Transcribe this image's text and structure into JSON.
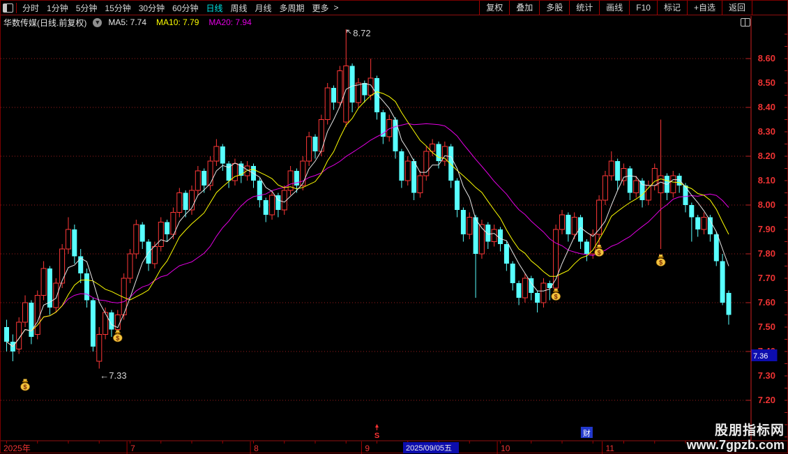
{
  "app": {
    "toolbar": {
      "left_items": [
        "分时",
        "1分钟",
        "5分钟",
        "15分钟",
        "30分钟",
        "60分钟",
        "日线",
        "周线",
        "月线",
        "多周期",
        "更多"
      ],
      "more_arrow": ">",
      "active_item": "日线",
      "right_items": [
        "复权",
        "叠加",
        "多股",
        "统计",
        "画线",
        "F10",
        "标记",
        "+自选",
        "返回"
      ]
    },
    "title_bar": {
      "symbol_title": "华数传媒(日线.前复权)",
      "ma_labels": [
        {
          "text": "MA5: 7.74",
          "color": "#e6e6e6"
        },
        {
          "text": "MA10: 7.79",
          "color": "#ffff00"
        },
        {
          "text": "MA20: 7.94",
          "color": "#e400e4"
        }
      ]
    },
    "watermark": {
      "line1": "股朋指标网",
      "line2": "www.7gpzb.com"
    }
  },
  "chart_data": {
    "type": "candlestick",
    "title": "华数传媒 日线 前复权",
    "y_axis": {
      "labels": [
        "8.60",
        "8.50",
        "8.40",
        "8.30",
        "8.20",
        "8.10",
        "8.00",
        "7.90",
        "7.80",
        "7.70",
        "7.60",
        "7.50",
        "7.40",
        "7.30",
        "7.20"
      ],
      "grid_step": 0.2
    },
    "x_axis": {
      "year_label": "2025年",
      "months": [
        {
          "label": "7",
          "index": 20
        },
        {
          "label": "8",
          "index": 40
        },
        {
          "label": "9",
          "index": 58
        },
        {
          "label": "10",
          "index": 80
        },
        {
          "label": "11",
          "index": 97
        }
      ],
      "date_tag": "2025/09/05五"
    },
    "last_price_tag": "7.36",
    "high_annotation": {
      "index": 55,
      "text": "8.72"
    },
    "low_annotation": {
      "index": 15,
      "text": "7.33"
    },
    "money_bags": [
      {
        "index": 3,
        "price": 7.26
      },
      {
        "index": 18,
        "price": 7.46
      },
      {
        "index": 89,
        "price": 7.63
      },
      {
        "index": 96,
        "price": 7.81
      },
      {
        "index": 106,
        "price": 7.77
      }
    ],
    "dividend_marker": {
      "index": 60,
      "symbol": "S"
    },
    "report_marker": {
      "index": 94,
      "text": "财"
    },
    "ma_series": [
      {
        "name": "MA5",
        "period": 5,
        "color": "#e6e6e6"
      },
      {
        "name": "MA10",
        "period": 10,
        "color": "#ffff00"
      },
      {
        "name": "MA20",
        "period": 20,
        "color": "#e400e4"
      }
    ],
    "colors": {
      "up": "#ff3737",
      "down": "#58ffff",
      "axis_text": "#ee3333",
      "grid": "#9b1e1e",
      "tag_bg": "#0d0dae",
      "separator": "#a00000"
    },
    "candles": [
      [
        7.5,
        7.53,
        7.4,
        7.44
      ],
      [
        7.44,
        7.47,
        7.36,
        7.4
      ],
      [
        7.41,
        7.54,
        7.39,
        7.52
      ],
      [
        7.52,
        7.63,
        7.5,
        7.6
      ],
      [
        7.6,
        7.61,
        7.43,
        7.46
      ],
      [
        7.47,
        7.65,
        7.45,
        7.63
      ],
      [
        7.63,
        7.77,
        7.61,
        7.74
      ],
      [
        7.74,
        7.75,
        7.55,
        7.58
      ],
      [
        7.58,
        7.7,
        7.56,
        7.68
      ],
      [
        7.68,
        7.84,
        7.66,
        7.82
      ],
      [
        7.82,
        7.95,
        7.8,
        7.9
      ],
      [
        7.9,
        7.92,
        7.76,
        7.79
      ],
      [
        7.79,
        7.82,
        7.68,
        7.72
      ],
      [
        7.72,
        7.74,
        7.58,
        7.61
      ],
      [
        7.61,
        7.62,
        7.4,
        7.42
      ],
      [
        7.36,
        7.5,
        7.33,
        7.47
      ],
      [
        7.47,
        7.58,
        7.45,
        7.56
      ],
      [
        7.56,
        7.57,
        7.46,
        7.49
      ],
      [
        7.49,
        7.57,
        7.44,
        7.55
      ],
      [
        7.55,
        7.72,
        7.53,
        7.7
      ],
      [
        7.7,
        7.82,
        7.68,
        7.8
      ],
      [
        7.8,
        7.94,
        7.78,
        7.92
      ],
      [
        7.92,
        7.93,
        7.82,
        7.85
      ],
      [
        7.85,
        7.86,
        7.73,
        7.76
      ],
      [
        7.76,
        7.85,
        7.74,
        7.83
      ],
      [
        7.83,
        7.95,
        7.81,
        7.93
      ],
      [
        7.93,
        7.94,
        7.85,
        7.88
      ],
      [
        7.88,
        7.99,
        7.86,
        7.97
      ],
      [
        7.97,
        8.07,
        7.95,
        8.05
      ],
      [
        8.05,
        8.06,
        7.95,
        7.98
      ],
      [
        7.98,
        8.08,
        7.96,
        8.06
      ],
      [
        8.06,
        8.16,
        8.04,
        8.14
      ],
      [
        8.14,
        8.15,
        8.05,
        8.08
      ],
      [
        8.08,
        8.2,
        8.06,
        8.18
      ],
      [
        8.18,
        8.27,
        8.16,
        8.24
      ],
      [
        8.24,
        8.25,
        8.14,
        8.17
      ],
      [
        8.17,
        8.18,
        8.07,
        8.1
      ],
      [
        8.1,
        8.19,
        8.08,
        8.17
      ],
      [
        8.17,
        8.18,
        8.09,
        8.12
      ],
      [
        8.12,
        8.18,
        8.1,
        8.16
      ],
      [
        8.16,
        8.17,
        8.07,
        8.1
      ],
      [
        8.1,
        8.11,
        7.99,
        8.02
      ],
      [
        8.02,
        8.03,
        7.93,
        7.96
      ],
      [
        7.96,
        8.06,
        7.94,
        8.04
      ],
      [
        8.04,
        8.05,
        7.95,
        7.98
      ],
      [
        7.98,
        8.08,
        7.96,
        8.06
      ],
      [
        8.06,
        8.16,
        8.04,
        8.14
      ],
      [
        8.14,
        8.15,
        8.05,
        8.08
      ],
      [
        8.08,
        8.2,
        8.06,
        8.18
      ],
      [
        8.18,
        8.3,
        8.16,
        8.28
      ],
      [
        8.28,
        8.29,
        8.19,
        8.22
      ],
      [
        8.22,
        8.37,
        8.2,
        8.35
      ],
      [
        8.35,
        8.5,
        8.33,
        8.48
      ],
      [
        8.48,
        8.49,
        8.39,
        8.42
      ],
      [
        8.42,
        8.57,
        8.4,
        8.55
      ],
      [
        8.34,
        8.72,
        8.32,
        8.57
      ],
      [
        8.57,
        8.58,
        8.38,
        8.42
      ],
      [
        8.42,
        8.52,
        8.4,
        8.5
      ],
      [
        8.5,
        8.51,
        8.42,
        8.45
      ],
      [
        8.45,
        8.6,
        8.43,
        8.52
      ],
      [
        8.52,
        8.53,
        8.35,
        8.38
      ],
      [
        8.38,
        8.39,
        8.25,
        8.28
      ],
      [
        8.28,
        8.37,
        8.26,
        8.35
      ],
      [
        8.35,
        8.36,
        8.19,
        8.22
      ],
      [
        8.22,
        8.23,
        8.07,
        8.1
      ],
      [
        8.1,
        8.2,
        8.08,
        8.18
      ],
      [
        8.18,
        8.19,
        8.02,
        8.05
      ],
      [
        8.05,
        8.14,
        8.03,
        8.12
      ],
      [
        8.12,
        8.24,
        8.1,
        8.22
      ],
      [
        8.22,
        8.27,
        8.2,
        8.25
      ],
      [
        8.25,
        8.26,
        8.15,
        8.18
      ],
      [
        8.18,
        8.26,
        8.16,
        8.24
      ],
      [
        8.24,
        8.25,
        8.07,
        8.1
      ],
      [
        8.1,
        8.11,
        7.95,
        7.98
      ],
      [
        7.98,
        7.99,
        7.85,
        7.88
      ],
      [
        7.88,
        7.97,
        7.86,
        7.95
      ],
      [
        7.95,
        7.96,
        7.62,
        7.8
      ],
      [
        7.8,
        7.94,
        7.78,
        7.92
      ],
      [
        7.92,
        7.93,
        7.82,
        7.85
      ],
      [
        7.85,
        7.92,
        7.83,
        7.9
      ],
      [
        7.9,
        7.91,
        7.81,
        7.84
      ],
      [
        7.84,
        7.85,
        7.73,
        7.76
      ],
      [
        7.76,
        7.77,
        7.65,
        7.68
      ],
      [
        7.68,
        7.69,
        7.59,
        7.62
      ],
      [
        7.62,
        7.72,
        7.6,
        7.7
      ],
      [
        7.7,
        7.71,
        7.61,
        7.64
      ],
      [
        7.64,
        7.65,
        7.56,
        7.6
      ],
      [
        7.6,
        7.7,
        7.58,
        7.68
      ],
      [
        7.68,
        7.69,
        7.61,
        7.66
      ],
      [
        7.66,
        7.92,
        7.64,
        7.9
      ],
      [
        7.9,
        7.98,
        7.88,
        7.96
      ],
      [
        7.96,
        7.97,
        7.85,
        7.88
      ],
      [
        7.88,
        7.97,
        7.86,
        7.95
      ],
      [
        7.95,
        7.96,
        7.82,
        7.85
      ],
      [
        7.85,
        7.86,
        7.77,
        7.8
      ],
      [
        7.8,
        7.9,
        7.78,
        7.88
      ],
      [
        7.88,
        8.04,
        7.81,
        8.02
      ],
      [
        8.02,
        8.14,
        8.0,
        8.12
      ],
      [
        8.12,
        8.22,
        8.1,
        8.18
      ],
      [
        8.18,
        8.19,
        8.06,
        8.1
      ],
      [
        8.1,
        8.17,
        8.08,
        8.15
      ],
      [
        8.15,
        8.16,
        8.02,
        8.05
      ],
      [
        8.05,
        8.12,
        8.03,
        8.1
      ],
      [
        8.1,
        8.11,
        7.99,
        8.02
      ],
      [
        8.02,
        8.1,
        8.0,
        8.08
      ],
      [
        8.08,
        8.17,
        8.06,
        8.15
      ],
      [
        8.05,
        8.35,
        7.82,
        8.12
      ],
      [
        8.12,
        8.13,
        8.02,
        8.05
      ],
      [
        8.05,
        8.14,
        8.03,
        8.12
      ],
      [
        8.12,
        8.13,
        8.05,
        8.08
      ],
      [
        8.08,
        8.09,
        7.97,
        8.0
      ],
      [
        8.0,
        8.01,
        7.85,
        7.95
      ],
      [
        7.95,
        7.96,
        7.87,
        7.9
      ],
      [
        7.9,
        7.97,
        7.88,
        7.95
      ],
      [
        7.95,
        7.96,
        7.85,
        7.88
      ],
      [
        7.88,
        7.89,
        7.75,
        7.77
      ],
      [
        7.77,
        7.8,
        7.59,
        7.6
      ],
      [
        7.64,
        7.65,
        7.51,
        7.55
      ]
    ]
  }
}
